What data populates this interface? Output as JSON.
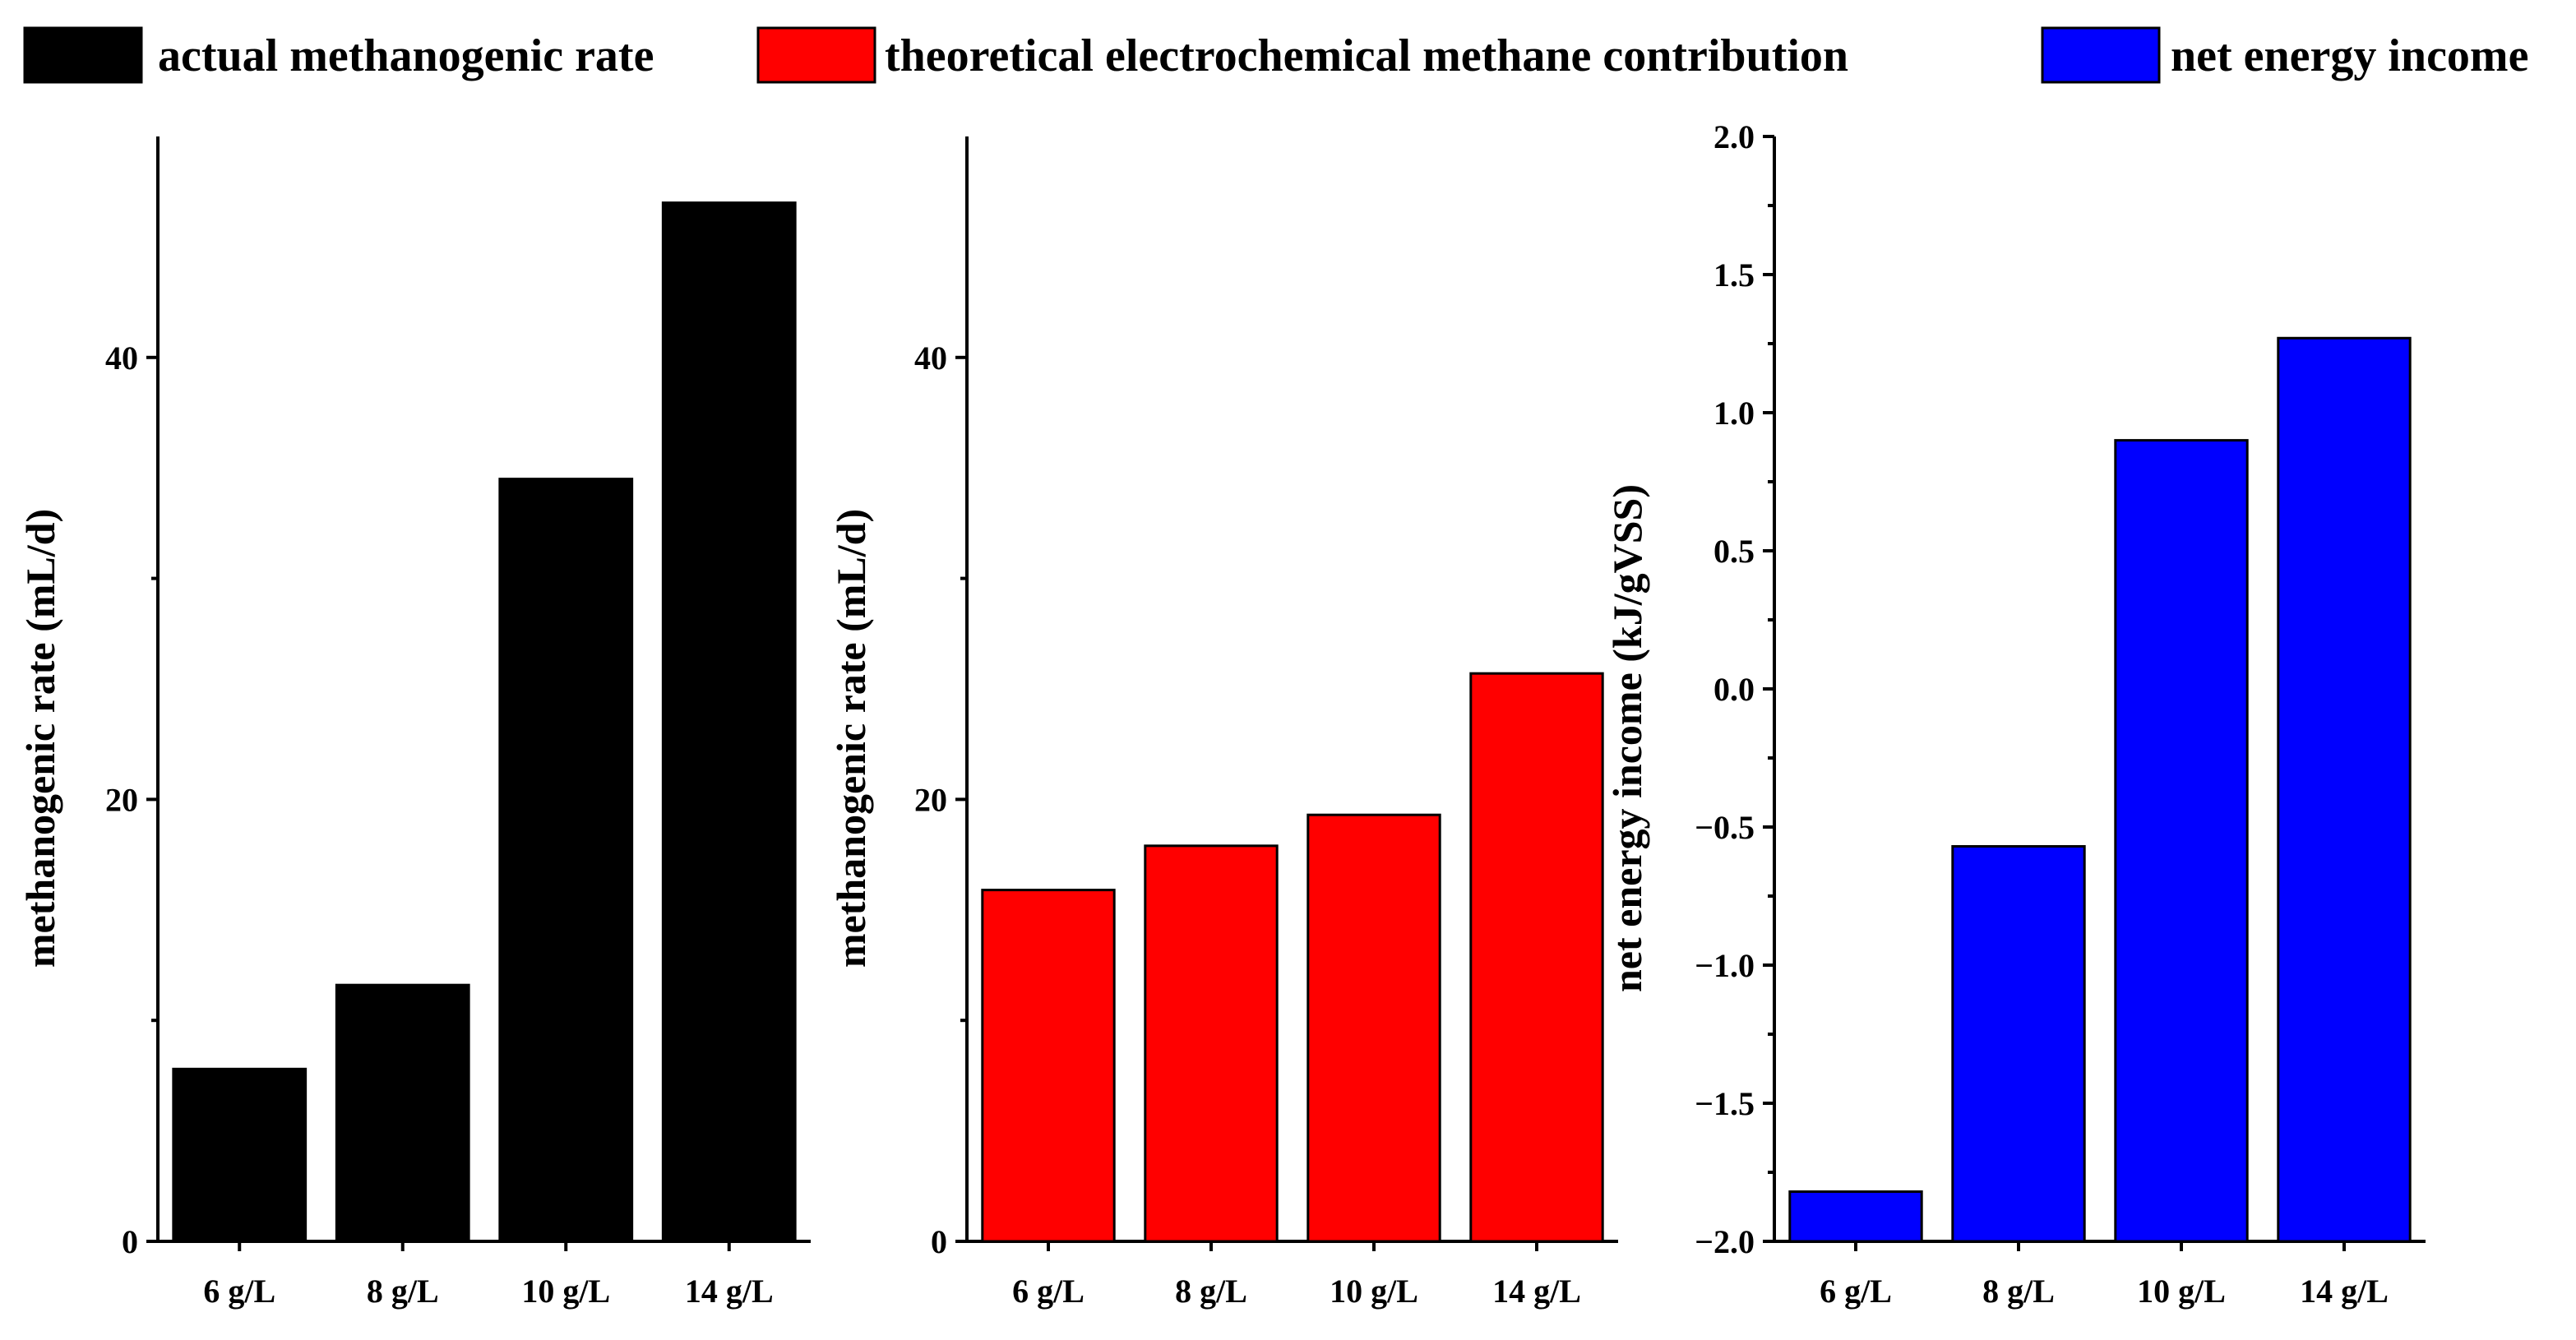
{
  "chart_data": [
    {
      "type": "bar",
      "categories": [
        "6 g/L",
        "8 g/L",
        "10 g/L",
        "14 g/L"
      ],
      "values": [
        7.8,
        11.6,
        34.5,
        47.0
      ],
      "color": "#000000",
      "legend": "actual methanogenic rate",
      "ylabel": "methanogenic rate (mL/d)",
      "xlabel": "",
      "ylim": [
        0,
        50
      ],
      "yticks": [
        0,
        20,
        40
      ],
      "ytick_labels": [
        "0",
        "20",
        "40"
      ]
    },
    {
      "type": "bar",
      "categories": [
        "6 g/L",
        "8 g/L",
        "10 g/L",
        "14 g/L"
      ],
      "values": [
        15.9,
        17.9,
        19.3,
        25.7
      ],
      "color": "#ff0000",
      "legend": "theoretical electrochemical methane contribution",
      "ylabel": "methanogenic rate (mL/d)",
      "xlabel": "",
      "ylim": [
        0,
        50
      ],
      "yticks": [
        0,
        20,
        40
      ],
      "ytick_labels": [
        "0",
        "20",
        "40"
      ]
    },
    {
      "type": "bar",
      "categories": [
        "6 g/L",
        "8 g/L",
        "10 g/L",
        "14 g/L"
      ],
      "values": [
        -1.82,
        -0.57,
        0.9,
        1.27
      ],
      "color": "#0000ff",
      "legend": "net energy income",
      "ylabel": "net energy income (kJ/gVSS)",
      "xlabel": "",
      "ylim": [
        -2.0,
        2.0
      ],
      "yticks": [
        -2.0,
        -1.5,
        -1.0,
        -0.5,
        0.0,
        0.5,
        1.0,
        1.5,
        2.0
      ],
      "ytick_labels": [
        "−2.0",
        "−1.5",
        "−1.0",
        "−0.5",
        "0.0",
        "0.5",
        "1.0",
        "1.5",
        "2.0"
      ]
    }
  ]
}
